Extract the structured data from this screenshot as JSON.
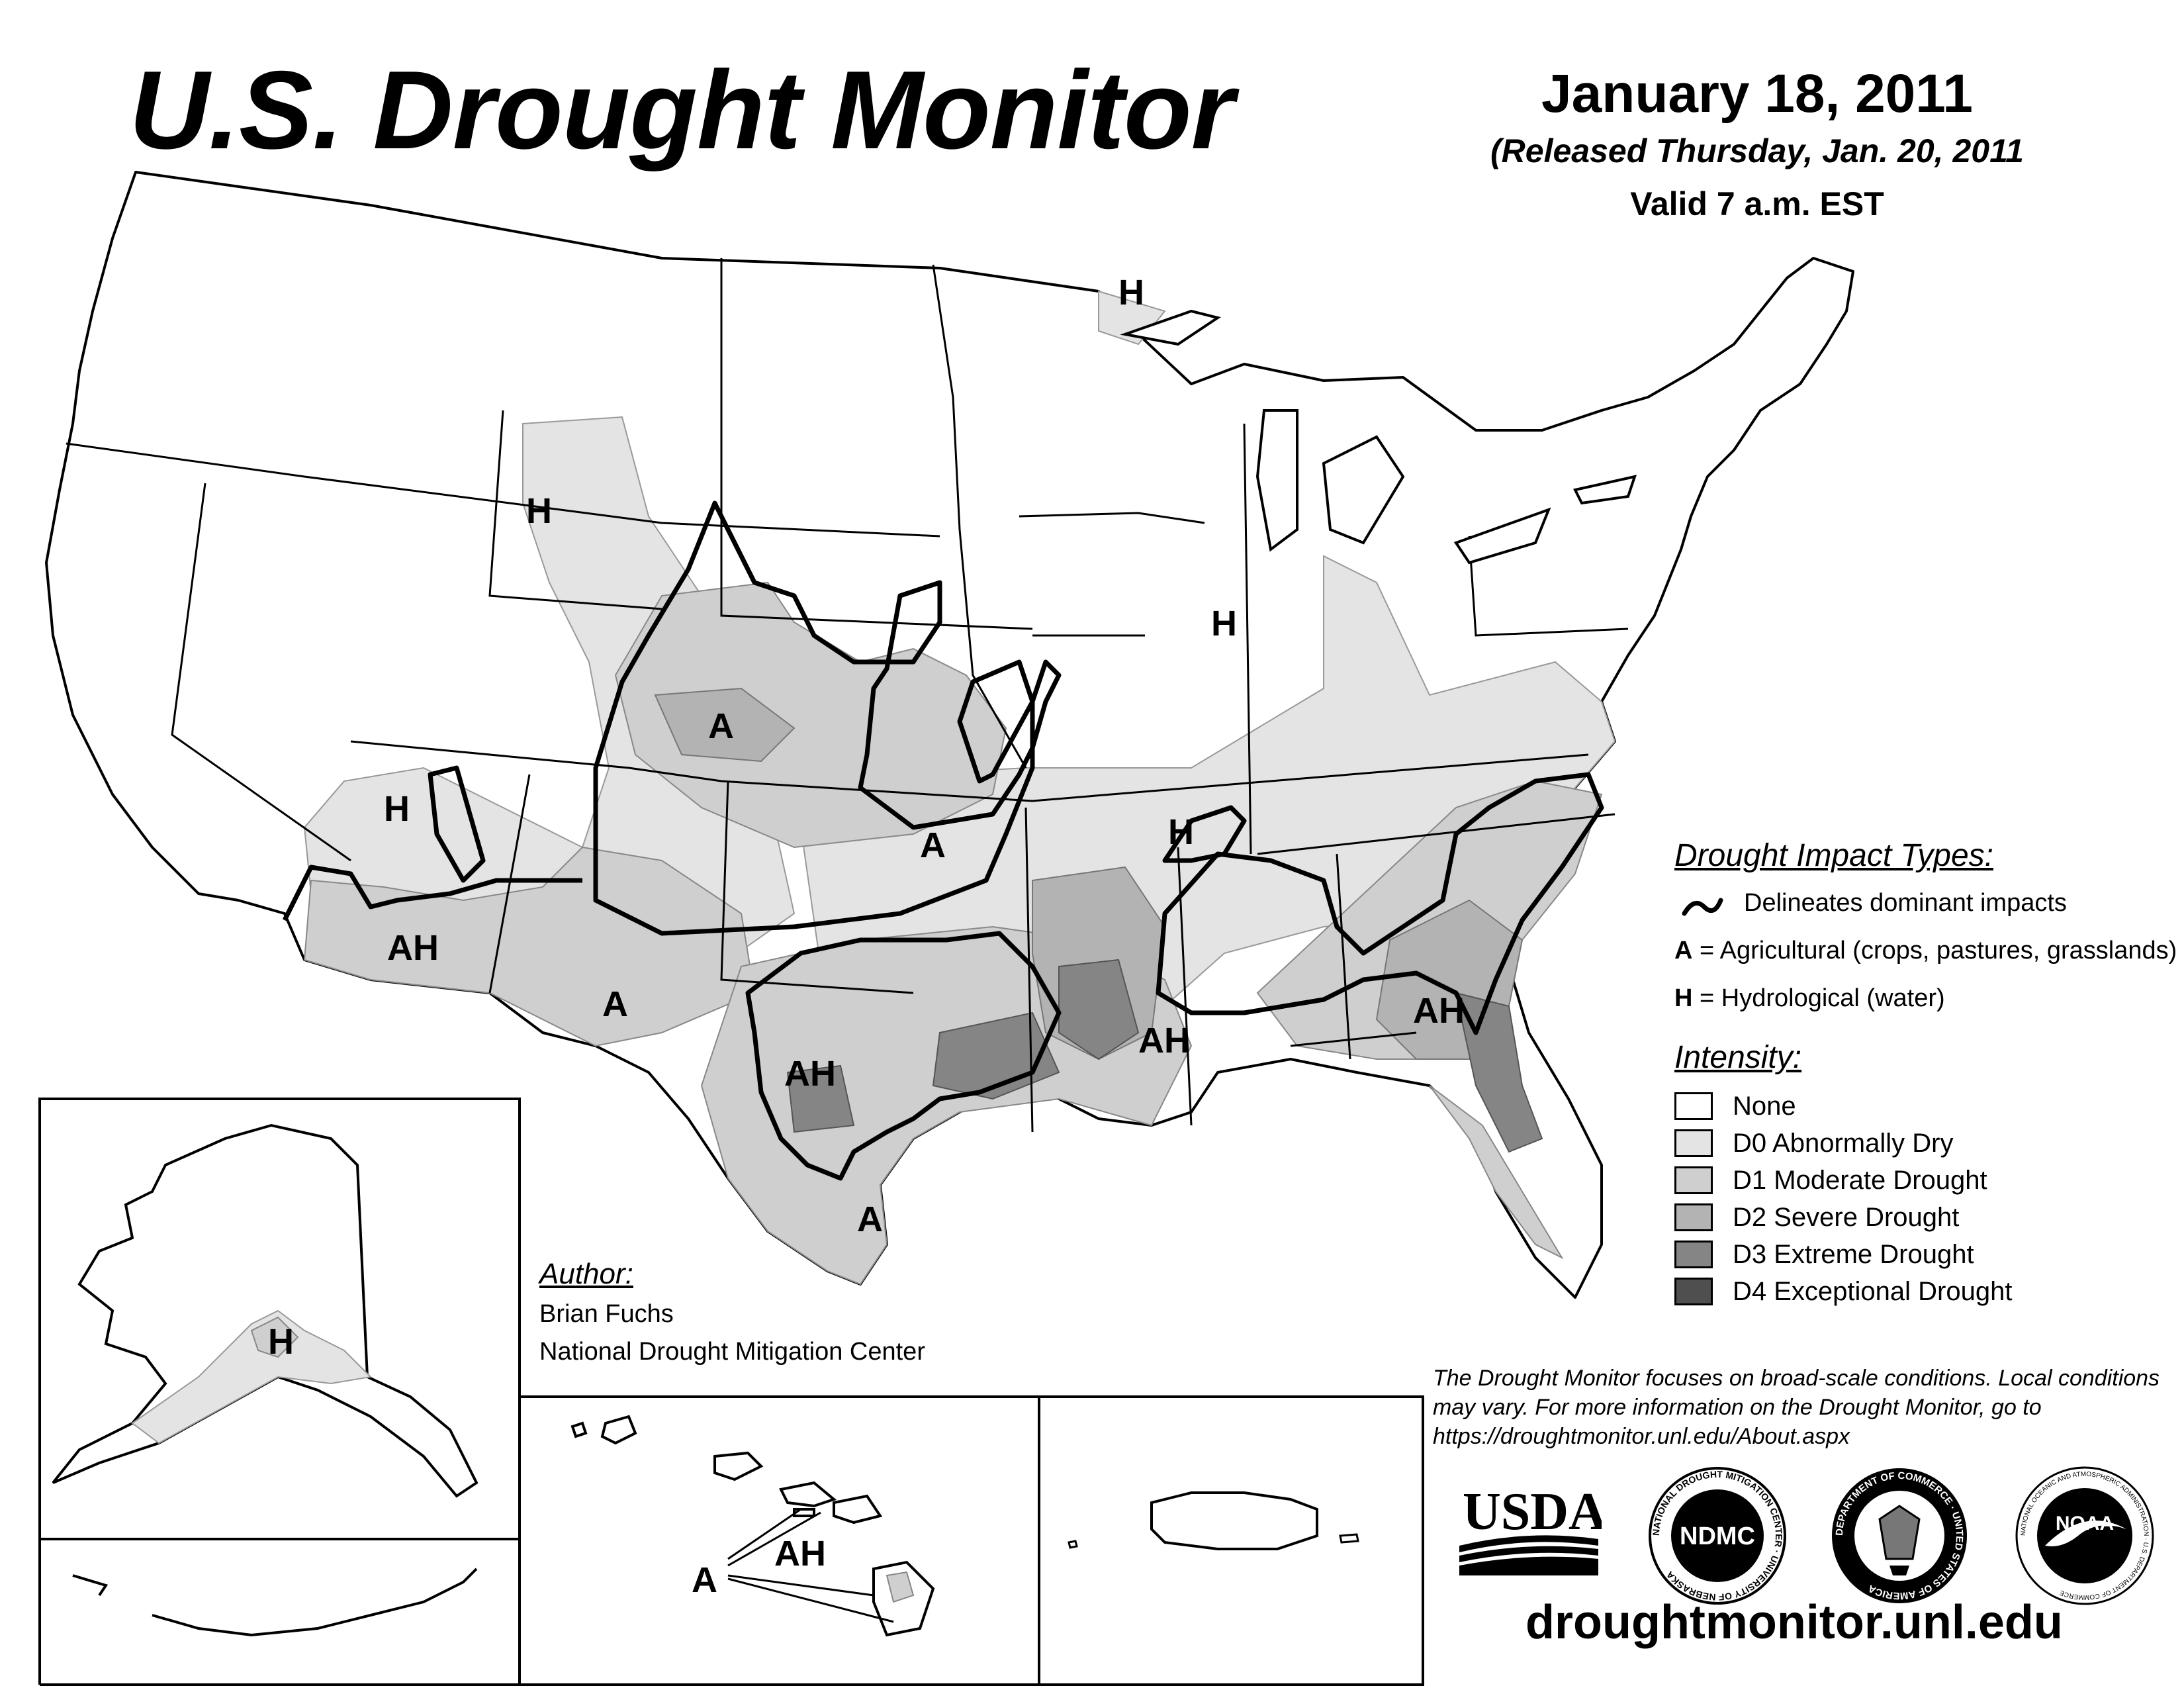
{
  "header": {
    "title": "U.S. Drought Monitor",
    "date": "January 18, 2011",
    "released": "(Released Thursday, Jan. 20, 2011",
    "valid": "Valid 7 a.m. EST"
  },
  "legend": {
    "impact_heading": "Drought Impact Types:",
    "impact_line": "Delineates dominant impacts",
    "agricultural_key": "A",
    "agricultural_text": "= Agricultural (crops, pastures, grasslands)",
    "hydrological_key": "H",
    "hydrological_text": "= Hydrological (water)",
    "intensity_heading": "Intensity:",
    "intensity": [
      {
        "label": "None",
        "color": "#ffffff"
      },
      {
        "label": "D0 Abnormally Dry",
        "color": "#e4e4e4"
      },
      {
        "label": "D1 Moderate Drought",
        "color": "#cfcfcf"
      },
      {
        "label": "D2 Severe Drought",
        "color": "#b3b3b3"
      },
      {
        "label": "D3 Extreme Drought",
        "color": "#858585"
      },
      {
        "label": "D4 Exceptional Drought",
        "color": "#4f4f4f"
      }
    ]
  },
  "map_labels": {
    "wyoming": "H",
    "colorado": "A",
    "arizona_h": "H",
    "arizona_ah": "AH",
    "new_mexico": "A",
    "kansas": "A",
    "missouri": "H",
    "illinois": "H",
    "minnesota": "H",
    "texas_ah": "AH",
    "south_texas": "A",
    "louisiana": "AH",
    "georgia": "AH",
    "alaska": "H",
    "hawaii_ah": "AH",
    "hawaii_a": "A"
  },
  "author": {
    "heading": "Author:",
    "name": "Brian Fuchs",
    "org": "National Drought Mitigation Center"
  },
  "note": "The Drought Monitor focuses on broad-scale conditions. Local conditions may vary. For more information on the Drought Monitor, go to https://droughtmonitor.unl.edu/About.aspx",
  "logos": {
    "usda": "USDA",
    "ndmc": "NDMC",
    "ndmc_ring": "NATIONAL DROUGHT MITIGATION CENTER · UNIVERSITY OF NEBRASKA",
    "commerce_ring": "DEPARTMENT OF COMMERCE · UNITED STATES OF AMERICA",
    "noaa": "NOAA",
    "noaa_ring": "NATIONAL OCEANIC AND ATMOSPHERIC ADMINISTRATION · U.S. DEPARTMENT OF COMMERCE"
  },
  "website": "droughtmonitor.unl.edu"
}
